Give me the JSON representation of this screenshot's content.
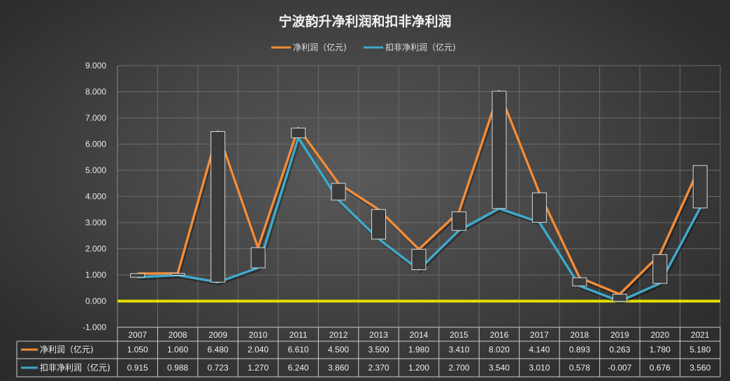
{
  "chart_data": {
    "type": "line",
    "title": "宁波韵升净利润和扣非净利润",
    "categories": [
      "2007",
      "2008",
      "2009",
      "2010",
      "2011",
      "2012",
      "2013",
      "2014",
      "2015",
      "2016",
      "2017",
      "2018",
      "2019",
      "2020",
      "2021"
    ],
    "series": [
      {
        "name": "净利润（亿元)",
        "color": "#f28c38",
        "values": [
          1.05,
          1.06,
          6.48,
          2.04,
          6.61,
          4.5,
          3.5,
          1.98,
          3.41,
          8.02,
          4.14,
          0.893,
          0.263,
          1.78,
          5.18
        ],
        "labels": [
          "1.050",
          "1.060",
          "6.480",
          "2.040",
          "6.610",
          "4.500",
          "3.500",
          "1.980",
          "3.410",
          "8.020",
          "4.140",
          "0.893",
          "0.263",
          "1.780",
          "5.180"
        ]
      },
      {
        "name": "扣非净利润（亿元)",
        "color": "#3fa9c9",
        "values": [
          0.915,
          0.988,
          0.723,
          1.27,
          6.24,
          3.86,
          2.37,
          1.2,
          2.7,
          3.54,
          3.01,
          0.578,
          -0.007,
          0.676,
          3.56
        ],
        "labels": [
          "0.915",
          "0.988",
          "0.723",
          "1.270",
          "6.240",
          "3.860",
          "2.370",
          "1.200",
          "2.700",
          "3.540",
          "3.010",
          "0.578",
          "-0.007",
          "0.676",
          "3.560"
        ]
      }
    ],
    "ylim": [
      -1,
      9
    ],
    "yticks": [
      "-1.000",
      "0.000",
      "1.000",
      "2.000",
      "3.000",
      "4.000",
      "5.000",
      "6.000",
      "7.000",
      "8.000",
      "9.000"
    ],
    "grid": true,
    "legend_position": "top-center",
    "data_table": true,
    "zero_line_color": "#e3e000",
    "high_low_bars": true
  }
}
